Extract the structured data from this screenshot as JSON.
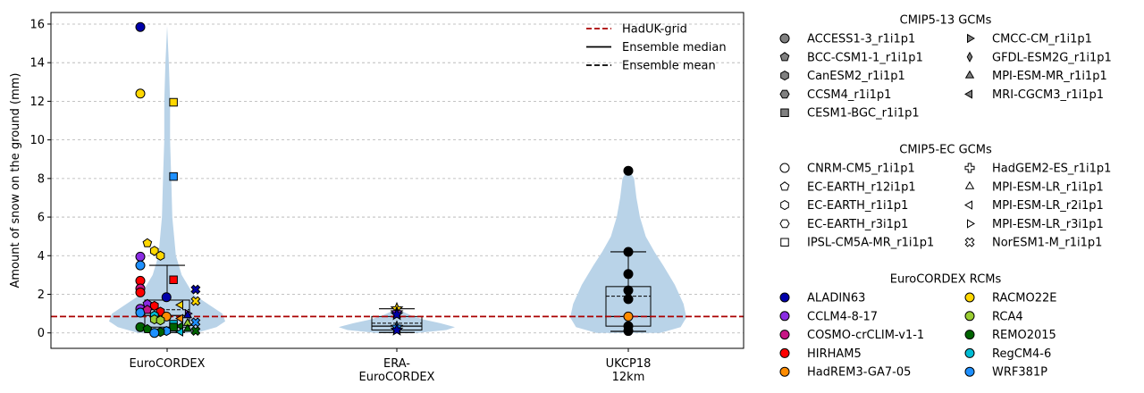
{
  "chart_data": {
    "type": "violin",
    "ylabel": "Amount of snow on the ground (mm)",
    "ylim": [
      -0.8,
      16.6
    ],
    "yticks": [
      0,
      2,
      4,
      6,
      8,
      10,
      12,
      14,
      16
    ],
    "ytick_labels": [
      "0",
      "2",
      "4",
      "6",
      "8",
      "10",
      "12",
      "14",
      "16"
    ],
    "grid": "horizontal dashed",
    "categories": [
      [
        "EuroCORDEX"
      ],
      [
        "ERA-",
        "EuroCORDEX"
      ],
      [
        "UKCP18",
        "12km"
      ]
    ],
    "reference_line": {
      "name": "HadUK-grid",
      "value": 0.85,
      "color": "#aa0000"
    },
    "violin_color": "#b9d3e8",
    "boxes": [
      {
        "q1": 0.3,
        "median": 0.9,
        "mean": 1.2,
        "q3": 1.7,
        "whisker_low": 0.02,
        "whisker_high": 3.5
      },
      {
        "q1": 0.15,
        "median": 0.35,
        "mean": 0.5,
        "q3": 0.85,
        "whisker_low": 0.02,
        "whisker_high": 1.25
      },
      {
        "q1": 0.35,
        "median": 0.85,
        "mean": 1.9,
        "q3": 2.4,
        "whisker_low": 0.08,
        "whisker_high": 4.2
      }
    ],
    "violins": [
      {
        "ymin": 0.0,
        "ymax": 15.9,
        "profile": [
          [
            0.0,
            0.5
          ],
          [
            0.3,
            0.85
          ],
          [
            0.6,
            1.0
          ],
          [
            1.0,
            0.95
          ],
          [
            1.5,
            0.7
          ],
          [
            2.0,
            0.45
          ],
          [
            3.0,
            0.25
          ],
          [
            4.0,
            0.15
          ],
          [
            6.0,
            0.09
          ],
          [
            8.0,
            0.07
          ],
          [
            10.0,
            0.05
          ],
          [
            12.0,
            0.05
          ],
          [
            14.0,
            0.03
          ],
          [
            15.9,
            0.0
          ]
        ]
      },
      {
        "ymin": 0.0,
        "ymax": 1.25,
        "profile": [
          [
            0.0,
            0.35
          ],
          [
            0.15,
            0.85
          ],
          [
            0.3,
            1.0
          ],
          [
            0.5,
            0.75
          ],
          [
            0.7,
            0.45
          ],
          [
            0.9,
            0.25
          ],
          [
            1.1,
            0.1
          ],
          [
            1.25,
            0.0
          ]
        ]
      },
      {
        "ymin": 0.0,
        "ymax": 8.5,
        "profile": [
          [
            0.0,
            0.55
          ],
          [
            0.3,
            0.9
          ],
          [
            0.8,
            1.0
          ],
          [
            1.5,
            0.95
          ],
          [
            2.5,
            0.8
          ],
          [
            3.5,
            0.6
          ],
          [
            4.2,
            0.45
          ],
          [
            5.0,
            0.3
          ],
          [
            6.0,
            0.2
          ],
          [
            7.0,
            0.14
          ],
          [
            8.0,
            0.1
          ],
          [
            8.5,
            0.0
          ]
        ]
      }
    ],
    "points": [
      {
        "g": 0,
        "dx": 0.0,
        "y": 15.85,
        "m": "circle",
        "c": "#0000aa"
      },
      {
        "g": 0,
        "dx": 0.0,
        "y": 12.4,
        "m": "circle",
        "c": "#ffd700"
      },
      {
        "g": 0,
        "dx": 0.33,
        "y": 11.95,
        "m": "square",
        "c": "#ffd700"
      },
      {
        "g": 0,
        "dx": 0.33,
        "y": 8.1,
        "m": "square",
        "c": "#1e90ff"
      },
      {
        "g": 0,
        "dx": 0.07,
        "y": 4.65,
        "m": "pentagon",
        "c": "#ffd700"
      },
      {
        "g": 0,
        "dx": 0.14,
        "y": 4.25,
        "m": "hexagon",
        "c": "#ffd700"
      },
      {
        "g": 0,
        "dx": 0.2,
        "y": 4.0,
        "m": "hexagon",
        "c": "#ffd700"
      },
      {
        "g": 0,
        "dx": 0.0,
        "y": 3.95,
        "m": "circle",
        "c": "#8a2be2"
      },
      {
        "g": 0,
        "dx": 0.0,
        "y": 3.5,
        "m": "circle",
        "c": "#1e90ff"
      },
      {
        "g": 0,
        "dx": 0.33,
        "y": 2.75,
        "m": "square",
        "c": "#ff0000"
      },
      {
        "g": 0,
        "dx": 0.0,
        "y": 2.7,
        "m": "circle",
        "c": "#ff0000"
      },
      {
        "g": 0,
        "dx": 0.0,
        "y": 2.3,
        "m": "circle",
        "c": "#c71585"
      },
      {
        "g": 0,
        "dx": 0.0,
        "y": 2.1,
        "m": "circle",
        "c": "#ff0000"
      },
      {
        "g": 0,
        "dx": 0.55,
        "y": 2.25,
        "m": "cross",
        "c": "#0000aa"
      },
      {
        "g": 0,
        "dx": 0.26,
        "y": 1.85,
        "m": "circle",
        "c": "#0000aa"
      },
      {
        "g": 0,
        "dx": 0.55,
        "y": 1.65,
        "m": "cross",
        "c": "#ffd700"
      },
      {
        "g": 0,
        "dx": 0.07,
        "y": 1.5,
        "m": "pentagon",
        "c": "#8a2be2"
      },
      {
        "g": 0,
        "dx": 0.14,
        "y": 1.4,
        "m": "hexagon",
        "c": "#ff0000"
      },
      {
        "g": 0,
        "dx": 0.4,
        "y": 1.45,
        "m": "tri_left",
        "c": "#ffd700"
      },
      {
        "g": 0,
        "dx": 0.0,
        "y": 1.25,
        "m": "circle",
        "c": "#8a2be2"
      },
      {
        "g": 0,
        "dx": 0.2,
        "y": 1.1,
        "m": "hexagon",
        "c": "#ff0000"
      },
      {
        "g": 0,
        "dx": 0.0,
        "y": 1.05,
        "m": "circle",
        "c": "#1e90ff"
      },
      {
        "g": 0,
        "dx": 0.07,
        "y": 1.2,
        "m": "pentagon",
        "c": "#c71585"
      },
      {
        "g": 0,
        "dx": 0.47,
        "y": 1.0,
        "m": "tri_right",
        "c": "#8a2be2"
      },
      {
        "g": 0,
        "dx": 0.47,
        "y": 0.9,
        "m": "tri_up",
        "c": "#0000aa"
      },
      {
        "g": 0,
        "dx": 0.14,
        "y": 0.9,
        "m": "hexagon",
        "c": "#00bcd4"
      },
      {
        "g": 0,
        "dx": 0.26,
        "y": 0.85,
        "m": "circle",
        "c": "#ff8c00"
      },
      {
        "g": 0,
        "dx": 0.14,
        "y": 0.7,
        "m": "hexagon",
        "c": "#9acd32"
      },
      {
        "g": 0,
        "dx": 0.2,
        "y": 0.65,
        "m": "hexagon",
        "c": "#9acd32"
      },
      {
        "g": 0,
        "dx": 0.4,
        "y": 0.75,
        "m": "tri_left",
        "c": "#ff8c00"
      },
      {
        "g": 0,
        "dx": 0.55,
        "y": 0.55,
        "m": "cross",
        "c": "#1e90ff"
      },
      {
        "g": 0,
        "dx": 0.47,
        "y": 0.5,
        "m": "tri_up",
        "c": "#9acd32"
      },
      {
        "g": 0,
        "dx": 0.33,
        "y": 0.45,
        "m": "square",
        "c": "#00bcd4"
      },
      {
        "g": 0,
        "dx": 0.4,
        "y": 0.35,
        "m": "tri_left",
        "c": "#006400"
      },
      {
        "g": 0,
        "dx": 0.0,
        "y": 0.3,
        "m": "circle",
        "c": "#006400"
      },
      {
        "g": 0,
        "dx": 0.07,
        "y": 0.2,
        "m": "pentagon",
        "c": "#006400"
      },
      {
        "g": 0,
        "dx": 0.33,
        "y": 0.3,
        "m": "square",
        "c": "#006400"
      },
      {
        "g": 0,
        "dx": 0.47,
        "y": 0.2,
        "m": "tri_up",
        "c": "#006400"
      },
      {
        "g": 0,
        "dx": 0.26,
        "y": 0.1,
        "m": "hexagon",
        "c": "#1e90ff"
      },
      {
        "g": 0,
        "dx": 0.2,
        "y": 0.05,
        "m": "hexagon",
        "c": "#006400"
      },
      {
        "g": 0,
        "dx": 0.55,
        "y": 0.1,
        "m": "cross",
        "c": "#006400"
      },
      {
        "g": 0,
        "dx": 0.4,
        "y": 0.05,
        "m": "tri_left",
        "c": "#00bcd4"
      },
      {
        "g": 0,
        "dx": 0.14,
        "y": 0.0,
        "m": "circle",
        "c": "#1e90ff"
      },
      {
        "g": 1,
        "dx": 0.0,
        "y": 1.25,
        "m": "star",
        "c": "#ffd700"
      },
      {
        "g": 1,
        "dx": 0.0,
        "y": 1.05,
        "m": "star",
        "c": "#8a2be2"
      },
      {
        "g": 1,
        "dx": 0.0,
        "y": 0.95,
        "m": "star",
        "c": "#0000aa"
      },
      {
        "g": 1,
        "dx": 0.0,
        "y": 0.3,
        "m": "star",
        "c": "#1e90ff"
      },
      {
        "g": 1,
        "dx": 0.0,
        "y": 0.15,
        "m": "star",
        "c": "#0000aa"
      },
      {
        "g": 2,
        "dx": 0.0,
        "y": 8.4,
        "m": "circle",
        "c": "#000000"
      },
      {
        "g": 2,
        "dx": 0.0,
        "y": 4.2,
        "m": "circle",
        "c": "#000000"
      },
      {
        "g": 2,
        "dx": 0.0,
        "y": 3.05,
        "m": "circle",
        "c": "#000000"
      },
      {
        "g": 2,
        "dx": 0.0,
        "y": 2.2,
        "m": "circle",
        "c": "#000000"
      },
      {
        "g": 2,
        "dx": 0.0,
        "y": 1.75,
        "m": "circle",
        "c": "#000000"
      },
      {
        "g": 2,
        "dx": 0.0,
        "y": 0.85,
        "m": "circle",
        "c": "#ff8c00"
      },
      {
        "g": 2,
        "dx": 0.0,
        "y": 0.35,
        "m": "circle",
        "c": "#000000"
      },
      {
        "g": 2,
        "dx": 0.0,
        "y": 0.1,
        "m": "circle",
        "c": "#000000"
      }
    ],
    "line_legend": [
      {
        "label": "HadUK-grid",
        "style": "dashed",
        "color": "#aa0000"
      },
      {
        "label": "Ensemble median",
        "style": "solid",
        "color": "#000000"
      },
      {
        "label": "Ensemble mean",
        "style": "dashed",
        "color": "#000000"
      }
    ],
    "legend_groups": [
      {
        "title": "CMIP5-13 GCMs",
        "items": [
          {
            "label": "ACCESS1-3_r1i1p1",
            "m": "circle",
            "c": "#808080"
          },
          {
            "label": "BCC-CSM1-1_r1i1p1",
            "m": "pentagon",
            "c": "#808080"
          },
          {
            "label": "CanESM2_r1i1p1",
            "m": "hexagon",
            "c": "#808080"
          },
          {
            "label": "CCSM4_r1i1p1",
            "m": "hexagon2",
            "c": "#808080"
          },
          {
            "label": "CESM1-BGC_r1i1p1",
            "m": "square",
            "c": "#808080"
          },
          {
            "label": "CMCC-CM_r1i1p1",
            "m": "tri_right",
            "c": "#808080"
          },
          {
            "label": "GFDL-ESM2G_r1i1p1",
            "m": "thin_diamond",
            "c": "#808080"
          },
          {
            "label": "MPI-ESM-MR_r1i1p1",
            "m": "tri_up",
            "c": "#808080"
          },
          {
            "label": "MRI-CGCM3_r1i1p1",
            "m": "tri_left",
            "c": "#808080"
          }
        ]
      },
      {
        "title": "CMIP5-EC GCMs",
        "items": [
          {
            "label": "CNRM-CM5_r1i1p1",
            "m": "circle",
            "c": "#ffffff"
          },
          {
            "label": "EC-EARTH_r12i1p1",
            "m": "pentagon",
            "c": "#ffffff"
          },
          {
            "label": "EC-EARTH_r1i1p1",
            "m": "hexagon",
            "c": "#ffffff"
          },
          {
            "label": "EC-EARTH_r3i1p1",
            "m": "hexagon2",
            "c": "#ffffff"
          },
          {
            "label": "IPSL-CM5A-MR_r1i1p1",
            "m": "square",
            "c": "#ffffff"
          },
          {
            "label": "HadGEM2-ES_r1i1p1",
            "m": "plus",
            "c": "#ffffff"
          },
          {
            "label": "MPI-ESM-LR_r1i1p1",
            "m": "tri_up",
            "c": "#ffffff"
          },
          {
            "label": "MPI-ESM-LR_r2i1p1",
            "m": "tri_left",
            "c": "#ffffff"
          },
          {
            "label": "MPI-ESM-LR_r3i1p1",
            "m": "tri_right",
            "c": "#ffffff"
          },
          {
            "label": "NorESM1-M_r1i1p1",
            "m": "cross",
            "c": "#ffffff"
          }
        ]
      },
      {
        "title": "EuroCORDEX RCMs",
        "items": [
          {
            "label": "ALADIN63",
            "m": "circle",
            "c": "#0000aa"
          },
          {
            "label": "CCLM4-8-17",
            "m": "circle",
            "c": "#8a2be2"
          },
          {
            "label": "COSMO-crCLIM-v1-1",
            "m": "circle",
            "c": "#c71585"
          },
          {
            "label": "HIRHAM5",
            "m": "circle",
            "c": "#ff0000"
          },
          {
            "label": "HadREM3-GA7-05",
            "m": "circle",
            "c": "#ff8c00"
          },
          {
            "label": "RACMO22E",
            "m": "circle",
            "c": "#ffd700"
          },
          {
            "label": "RCA4",
            "m": "circle",
            "c": "#9acd32"
          },
          {
            "label": "REMO2015",
            "m": "circle",
            "c": "#006400"
          },
          {
            "label": "RegCM4-6",
            "m": "circle",
            "c": "#00bcd4"
          },
          {
            "label": "WRF381P",
            "m": "circle",
            "c": "#1e90ff"
          }
        ]
      }
    ]
  }
}
